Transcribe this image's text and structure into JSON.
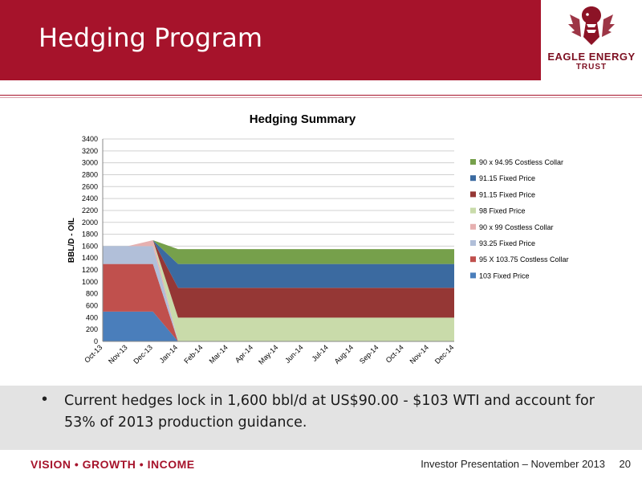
{
  "slide": {
    "title": "Hedging Program",
    "logo_line1": "EAGLE ENERGY",
    "logo_line2": "TRUST",
    "bullet": "Current hedges lock in 1,600 bbl/d at US$90.00 - $103 WTI and account for 53% of 2013 production guidance.",
    "footer_tagline": "VISION • GROWTH • INCOME",
    "footer_presentation": "Investor Presentation – November 2013",
    "page_number": "20"
  },
  "colors": {
    "brand": "#a6132b",
    "band": "#e3e3e3"
  },
  "chart_data": {
    "type": "area",
    "title": "Hedging Summary",
    "ylabel": "BBL/D - OIL",
    "xlabel": "",
    "ylim": [
      0,
      3400
    ],
    "yticks": [
      0,
      200,
      400,
      600,
      800,
      1000,
      1200,
      1400,
      1600,
      1800,
      2000,
      2200,
      2400,
      2600,
      2800,
      3000,
      3200,
      3400
    ],
    "categories": [
      "Oct-13",
      "Nov-13",
      "Dec-13",
      "Jan-14",
      "Feb-14",
      "Mar-14",
      "Apr-14",
      "May-14",
      "Jun-14",
      "Jul-14",
      "Aug-14",
      "Sep-14",
      "Oct-14",
      "Nov-14",
      "Dec-14"
    ],
    "stacked": true,
    "grid": true,
    "legend_position": "right",
    "series": [
      {
        "name": "103 Fixed Price",
        "color": "#4a7ebb",
        "values": [
          500,
          500,
          500,
          0,
          0,
          0,
          0,
          0,
          0,
          0,
          0,
          0,
          0,
          0,
          0
        ]
      },
      {
        "name": "95 X 103.75 Costless Collar",
        "color": "#c0504d",
        "values": [
          800,
          800,
          800,
          0,
          0,
          0,
          0,
          0,
          0,
          0,
          0,
          0,
          0,
          0,
          0
        ]
      },
      {
        "name": "93.25 Fixed Price",
        "color": "#b1bfd9",
        "values": [
          300,
          300,
          300,
          0,
          0,
          0,
          0,
          0,
          0,
          0,
          0,
          0,
          0,
          0,
          0
        ]
      },
      {
        "name": "90 x 99 Costless Collar",
        "color": "#e6b0b0",
        "values": [
          0,
          0,
          100,
          0,
          0,
          0,
          0,
          0,
          0,
          0,
          0,
          0,
          0,
          0,
          0
        ]
      },
      {
        "name": "98 Fixed Price",
        "color": "#c9dbaa",
        "values": [
          0,
          0,
          0,
          400,
          400,
          400,
          400,
          400,
          400,
          400,
          400,
          400,
          400,
          400,
          400
        ]
      },
      {
        "name": "91.15 Fixed Price",
        "color": "#953735",
        "values": [
          0,
          0,
          0,
          500,
          500,
          500,
          500,
          500,
          500,
          500,
          500,
          500,
          500,
          500,
          500
        ]
      },
      {
        "name": "91.15 Fixed Price",
        "color": "#3b6aa0",
        "values": [
          0,
          0,
          0,
          400,
          400,
          400,
          400,
          400,
          400,
          400,
          400,
          400,
          400,
          400,
          400
        ]
      },
      {
        "name": "90 x 94.95 Costless Collar",
        "color": "#76a04b",
        "values": [
          0,
          0,
          0,
          250,
          250,
          250,
          250,
          250,
          250,
          250,
          250,
          250,
          250,
          250,
          250
        ]
      }
    ]
  }
}
